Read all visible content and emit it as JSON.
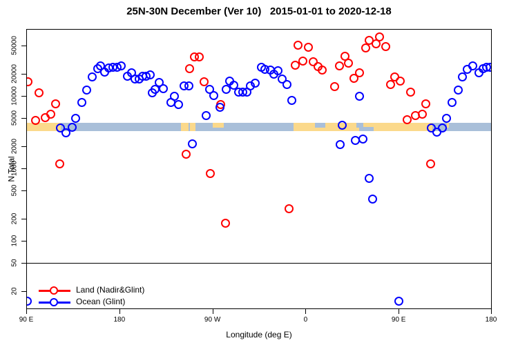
{
  "title": "25N-30N December (Ver 10)   2015-01-01 to 2020-12-18",
  "chart_data": {
    "type": "scatter",
    "title": "25N-30N December (Ver 10)   2015-01-01 to 2020-12-18",
    "xlabel": "Longitude (deg E)",
    "ylabel": "N Total",
    "x_axis": {
      "note": "longitude axis wraps eastward from 90E over 450 degrees",
      "range_deg": [
        90,
        540
      ],
      "ticks_deg": [
        90,
        180,
        270,
        360,
        450,
        540
      ],
      "tick_labels": [
        "90 E",
        "180",
        "90 W",
        "0",
        "90 E",
        "180"
      ]
    },
    "y_axis": {
      "scale": "log",
      "range": [
        11.5,
        84000
      ],
      "ticks": [
        20,
        50,
        100,
        200,
        500,
        1000,
        2000,
        5000,
        10000,
        20000,
        50000
      ]
    },
    "reference_line_n": 50,
    "grid": "off",
    "legend_position": "bottom-left",
    "legend": [
      {
        "label": "Land (Nadir&Glint)",
        "color": "#ff0000"
      },
      {
        "label": "Ocean (Glint)",
        "color": "#0000ff"
      }
    ],
    "map_band": {
      "description": "land/ocean map strip for 25N-30N drawn across the plot",
      "n_top": 4300,
      "n_bottom": 3350,
      "ocean_color": "#a9bfd9",
      "land_color": "#fbd98b",
      "land_segments": [
        {
          "from": 90,
          "to": 122.7,
          "v": "full"
        },
        {
          "from": 238.9,
          "to": 246.0,
          "v": "full"
        },
        {
          "from": 247.5,
          "to": 252.8,
          "v": "full"
        },
        {
          "from": 269.7,
          "to": 280.4,
          "v": "top"
        },
        {
          "from": 347.8,
          "to": 482.1,
          "v": "full"
        },
        {
          "from": 496.0,
          "to": 498.0,
          "v": "top"
        }
      ],
      "ocean_overlays": [
        {
          "from": 368.5,
          "to": 378.5,
          "v": "top"
        },
        {
          "from": 408.6,
          "to": 415.0,
          "v": "top"
        },
        {
          "from": 411.0,
          "to": 425.3,
          "v": "bottom"
        }
      ]
    },
    "series": [
      {
        "name": "Land (Nadir&Glint)",
        "color": "#ff0000",
        "points": [
          [
            91.3,
            15800
          ],
          [
            102.2,
            11200
          ],
          [
            117.8,
            7900
          ],
          [
            98.9,
            4640
          ],
          [
            108.2,
            5100
          ],
          [
            113.4,
            5620
          ],
          [
            121.9,
            1160
          ],
          [
            244.3,
            1570
          ],
          [
            247.8,
            24200
          ],
          [
            252.3,
            34700
          ],
          [
            256.8,
            34700
          ],
          [
            261.6,
            15850
          ],
          [
            267.9,
            860
          ],
          [
            277.5,
            7640
          ],
          [
            282.4,
            176
          ],
          [
            343.6,
            278
          ],
          [
            349.6,
            26800
          ],
          [
            352.3,
            50300
          ],
          [
            356.9,
            30600
          ],
          [
            362.3,
            47400
          ],
          [
            367.4,
            30100
          ],
          [
            371.8,
            25800
          ],
          [
            375.9,
            23200
          ],
          [
            388.1,
            13500
          ],
          [
            392.4,
            26400
          ],
          [
            397.5,
            35500
          ],
          [
            400.8,
            28400
          ],
          [
            406.4,
            17700
          ],
          [
            411.9,
            21200
          ],
          [
            417.5,
            46700
          ],
          [
            421.3,
            59000
          ],
          [
            427.5,
            53000
          ],
          [
            430.9,
            65900
          ],
          [
            437.3,
            48500
          ],
          [
            442.0,
            14500
          ],
          [
            446.0,
            18600
          ],
          [
            451.3,
            16200
          ],
          [
            461.5,
            11400
          ],
          [
            476.0,
            7900
          ],
          [
            472.4,
            5690
          ],
          [
            465.8,
            5370
          ],
          [
            458.2,
            4740
          ],
          [
            480.5,
            1160
          ]
        ]
      },
      {
        "name": "Ocean (Glint)",
        "color": "#0000ff",
        "points": [
          [
            90.7,
            15
          ],
          [
            122.9,
            3670
          ],
          [
            128.3,
            3130
          ],
          [
            133.9,
            3730
          ],
          [
            137.4,
            4990
          ],
          [
            143.4,
            8200
          ],
          [
            148.3,
            12100
          ],
          [
            153.4,
            18400
          ],
          [
            159.0,
            24000
          ],
          [
            161.7,
            26400
          ],
          [
            165.7,
            21700
          ],
          [
            169.7,
            24500
          ],
          [
            173.5,
            24900
          ],
          [
            177.3,
            24900
          ],
          [
            181.3,
            26400
          ],
          [
            187.5,
            19000
          ],
          [
            191.3,
            20900
          ],
          [
            195.1,
            17300
          ],
          [
            198.7,
            17300
          ],
          [
            202.4,
            19000
          ],
          [
            205.8,
            19000
          ],
          [
            209.6,
            19700
          ],
          [
            211.6,
            11200
          ],
          [
            214.4,
            12400
          ],
          [
            218.2,
            15600
          ],
          [
            222.0,
            12700
          ],
          [
            229.4,
            8200
          ],
          [
            233.1,
            10100
          ],
          [
            237.1,
            7690
          ],
          [
            242.1,
            13900
          ],
          [
            247.2,
            13900
          ],
          [
            250.5,
            2190
          ],
          [
            263.4,
            5370
          ],
          [
            267.2,
            12450
          ],
          [
            271.0,
            10230
          ],
          [
            277.0,
            7100
          ],
          [
            282.8,
            12400
          ],
          [
            286.6,
            16100
          ],
          [
            290.2,
            14200
          ],
          [
            295.1,
            11400
          ],
          [
            299.1,
            11400
          ],
          [
            302.9,
            11500
          ],
          [
            306.6,
            13800
          ],
          [
            311.1,
            15300
          ],
          [
            316.9,
            24900
          ],
          [
            320.6,
            23700
          ],
          [
            325.8,
            23200
          ],
          [
            329.1,
            20200
          ],
          [
            333.1,
            22500
          ],
          [
            337.1,
            17300
          ],
          [
            341.6,
            14500
          ],
          [
            346.3,
            8800
          ],
          [
            393.0,
            2170
          ],
          [
            395.2,
            3950
          ],
          [
            407.9,
            2460
          ],
          [
            411.5,
            10100
          ],
          [
            415.3,
            2590
          ],
          [
            421.3,
            740
          ],
          [
            424.8,
            380
          ],
          [
            449.8,
            15
          ],
          [
            481.4,
            3670
          ],
          [
            486.5,
            3180
          ],
          [
            491.6,
            3670
          ],
          [
            496.1,
            4990
          ],
          [
            501.4,
            8200
          ],
          [
            507.2,
            12100
          ],
          [
            511.0,
            18400
          ],
          [
            516.1,
            23700
          ],
          [
            521.5,
            26400
          ],
          [
            527.3,
            20900
          ],
          [
            531.0,
            24200
          ],
          [
            534.8,
            24900
          ],
          [
            538.3,
            24900
          ]
        ]
      }
    ]
  }
}
